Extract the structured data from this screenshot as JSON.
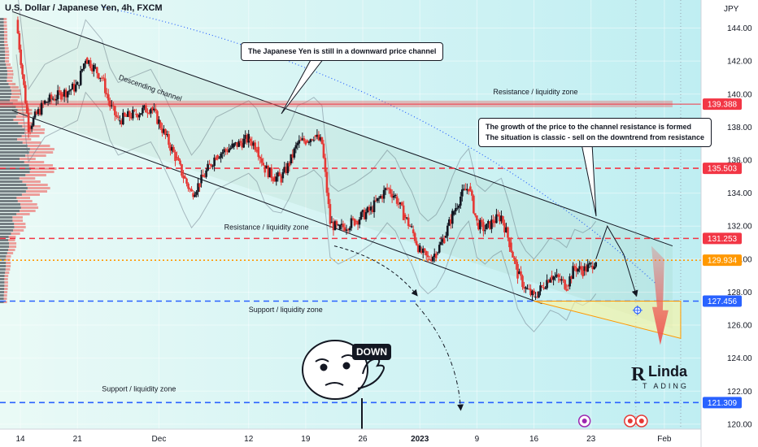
{
  "chart_data": {
    "type": "candlestick",
    "title": "U.S. Dollar / Japanese Yen, 4h, FXCM",
    "currency_label": "JPY",
    "y_ticks": [
      120,
      122,
      124,
      126,
      128,
      130,
      132,
      134,
      136,
      138,
      140,
      142,
      144
    ],
    "ylim": [
      119.7,
      145.7
    ],
    "x_ticks": [
      {
        "label": "14",
        "x": 0
      },
      {
        "label": "21",
        "x": 7
      },
      {
        "label": "Dec",
        "x": 17
      },
      {
        "label": "12",
        "x": 28
      },
      {
        "label": "19",
        "x": 35
      },
      {
        "label": "26",
        "x": 42
      },
      {
        "label": "2023",
        "x": 49
      },
      {
        "label": "9",
        "x": 56
      },
      {
        "label": "16",
        "x": 63
      },
      {
        "label": "23",
        "x": 70
      },
      {
        "label": "Feb",
        "x": 79
      }
    ],
    "xlim": [
      -2.5,
      83.5
    ],
    "path": [
      [
        -0.5,
        144.5
      ],
      [
        1,
        138
      ],
      [
        3,
        139.5
      ],
      [
        5,
        140
      ],
      [
        7,
        140.5
      ],
      [
        8,
        142.2
      ],
      [
        9,
        141.6
      ],
      [
        10,
        141.0
      ],
      [
        11,
        139.3
      ],
      [
        12,
        138.4
      ],
      [
        14,
        138.8
      ],
      [
        16,
        139.2
      ],
      [
        17,
        138.3
      ],
      [
        19,
        136.2
      ],
      [
        20,
        135.0
      ],
      [
        21,
        134.0
      ],
      [
        22,
        134.6
      ],
      [
        24,
        136.3
      ],
      [
        26,
        136.8
      ],
      [
        28,
        137.3
      ],
      [
        29,
        136.8
      ],
      [
        30,
        135.5
      ],
      [
        31,
        135.0
      ],
      [
        32,
        134.9
      ],
      [
        33,
        135.8
      ],
      [
        34,
        137.0
      ],
      [
        35,
        137.2
      ],
      [
        36,
        137.5
      ],
      [
        37,
        137.0
      ],
      [
        38,
        132.2
      ],
      [
        39,
        131.8
      ],
      [
        41,
        132.3
      ],
      [
        43,
        133.0
      ],
      [
        45,
        134.3
      ],
      [
        46,
        133.8
      ],
      [
        47,
        132.7
      ],
      [
        48,
        131.8
      ],
      [
        49,
        130.5
      ],
      [
        50,
        130.0
      ],
      [
        51,
        130.4
      ],
      [
        52,
        131.3
      ],
      [
        53,
        132.7
      ],
      [
        54,
        133.8
      ],
      [
        55,
        134.4
      ],
      [
        56,
        132.2
      ],
      [
        57,
        131.8
      ],
      [
        58,
        132.3
      ],
      [
        59,
        132.6
      ],
      [
        60,
        131.0
      ],
      [
        61,
        129.1
      ],
      [
        62,
        128.2
      ],
      [
        63,
        127.7
      ],
      [
        64,
        128.3
      ],
      [
        65,
        129.0
      ],
      [
        66,
        128.8
      ],
      [
        67,
        128.4
      ],
      [
        68,
        129.5
      ],
      [
        69,
        129.3
      ],
      [
        70,
        129.6
      ],
      [
        70.6,
        130.0
      ]
    ],
    "price_lines": [
      {
        "value": 139.388,
        "label": "139.388",
        "color": "#f23645",
        "style": "solid"
      },
      {
        "value": 135.503,
        "label": "135.503",
        "color": "#f23645",
        "style": "dashed"
      },
      {
        "value": 131.253,
        "label": "131.253",
        "color": "#f23645",
        "style": "dashed"
      },
      {
        "value": 129.934,
        "label": "129.934",
        "color": "#ff9800",
        "style": "dotted"
      },
      {
        "value": 127.456,
        "label": "127.456",
        "color": "#2962ff",
        "style": "dashed"
      },
      {
        "value": 121.309,
        "label": "121.309",
        "color": "#2962ff",
        "style": "dashed"
      }
    ],
    "annotations": {
      "descending_channel": "Descending channel",
      "zones": [
        {
          "label": "Resistance / liquidity zone",
          "value": 140.0,
          "x": 58
        },
        {
          "label": "Resistance / liquidity zone",
          "value": 131.8,
          "x": 25
        },
        {
          "label": "Support / liquidity zone",
          "value": 126.8,
          "x": 28
        },
        {
          "label": "Support / liquidity zone",
          "value": 122.0,
          "x": 10
        }
      ],
      "callouts": [
        {
          "lines": [
            "The Japanese Yen is still in a downward price channel"
          ]
        },
        {
          "lines": [
            "The growth of the price to the channel resistance is formed",
            "The situation is classic - sell on the downtrend from resistance"
          ]
        }
      ],
      "down_label": "DOWN",
      "brand_top": "Linda",
      "brand_bottom": "T  ADING"
    },
    "colors": {
      "up": "#26a69a",
      "down": "#ef5350",
      "candle_up": "#131722",
      "candle_down": "#e53935",
      "channel": "#131722",
      "arrow": "#ef5350"
    }
  }
}
